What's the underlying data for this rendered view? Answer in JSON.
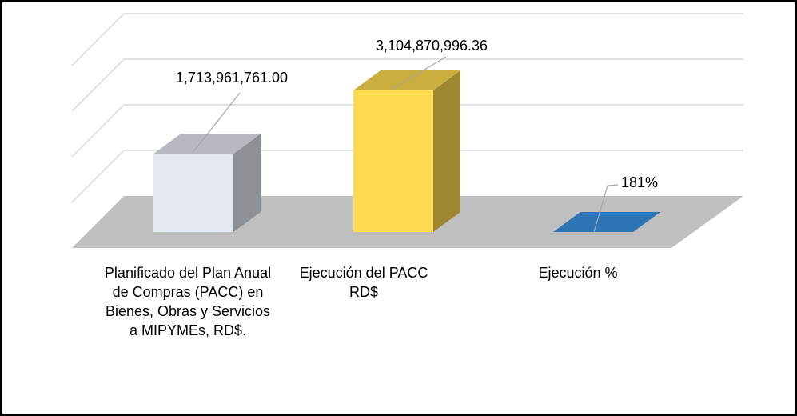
{
  "chart_data": {
    "type": "bar3d",
    "categories": [
      "Planificado del Plan Anual de Compras (PACC) en Bienes, Obras y Servicios a MIPYMEs, RD$.",
      "Ejecución del PACC RD$",
      "Ejecución %"
    ],
    "values": [
      1713961761.0,
      3104870996.36,
      181
    ],
    "value_labels": [
      "1,713,961,761.00",
      "3,104,870,996.36",
      "181%"
    ],
    "colors": [
      "#e4e8f0",
      "#ffd94f",
      "#2e75b6"
    ],
    "ylim": [
      0,
      4000000000
    ],
    "yticks": [
      0,
      1000000000,
      2000000000,
      3000000000,
      4000000000
    ],
    "grid": true
  }
}
